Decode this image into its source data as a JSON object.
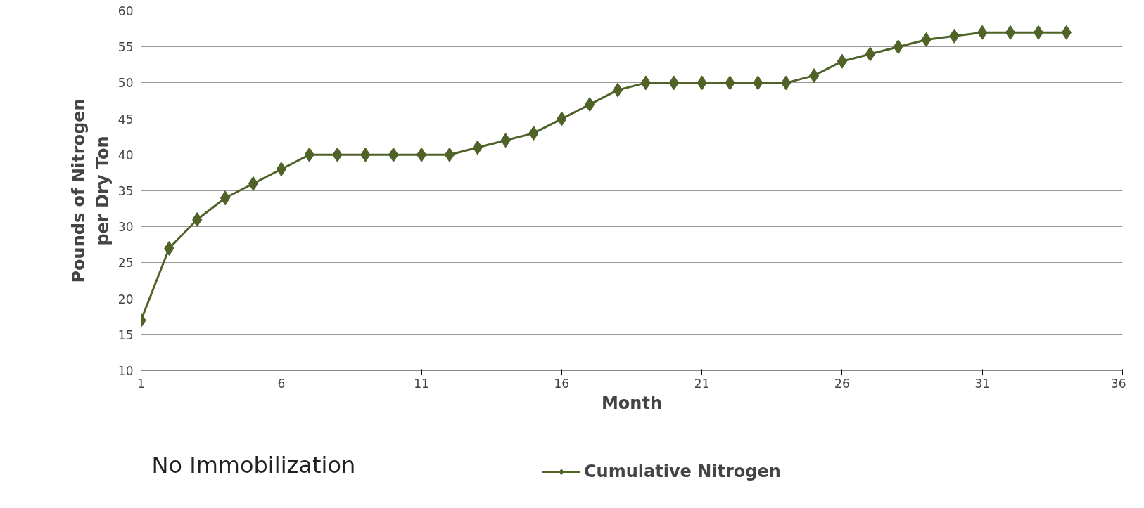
{
  "chart_data": {
    "type": "line",
    "xlabel": "Month",
    "ylabel": "Pounds of Nitrogen\nper Dry Ton",
    "annotations": [
      "No Immobilization"
    ],
    "x": [
      1,
      2,
      3,
      4,
      5,
      6,
      7,
      8,
      9,
      10,
      11,
      12,
      13,
      14,
      15,
      16,
      17,
      18,
      19,
      20,
      21,
      22,
      23,
      24,
      25,
      26,
      27,
      28,
      29,
      30,
      31,
      32,
      33,
      34
    ],
    "series": [
      {
        "name": "Cumulative Nitrogen",
        "color": "#4f6228",
        "values": [
          17,
          27,
          31,
          34,
          36,
          38,
          40,
          40,
          40,
          40,
          40,
          40,
          41,
          42,
          43,
          45,
          47,
          49,
          50,
          50,
          50,
          50,
          50,
          50,
          51,
          53,
          54,
          55,
          56,
          56.5,
          57,
          57,
          57,
          57
        ]
      }
    ],
    "xlim": [
      1,
      36
    ],
    "xticks": [
      1,
      6,
      11,
      16,
      21,
      26,
      31,
      36
    ],
    "ylim": [
      10,
      60
    ],
    "yticks": [
      10,
      15,
      20,
      25,
      30,
      35,
      40,
      45,
      50,
      55,
      60
    ],
    "grid": "y",
    "legend": "bottom",
    "marker": "diamond",
    "line_style": "solid"
  }
}
